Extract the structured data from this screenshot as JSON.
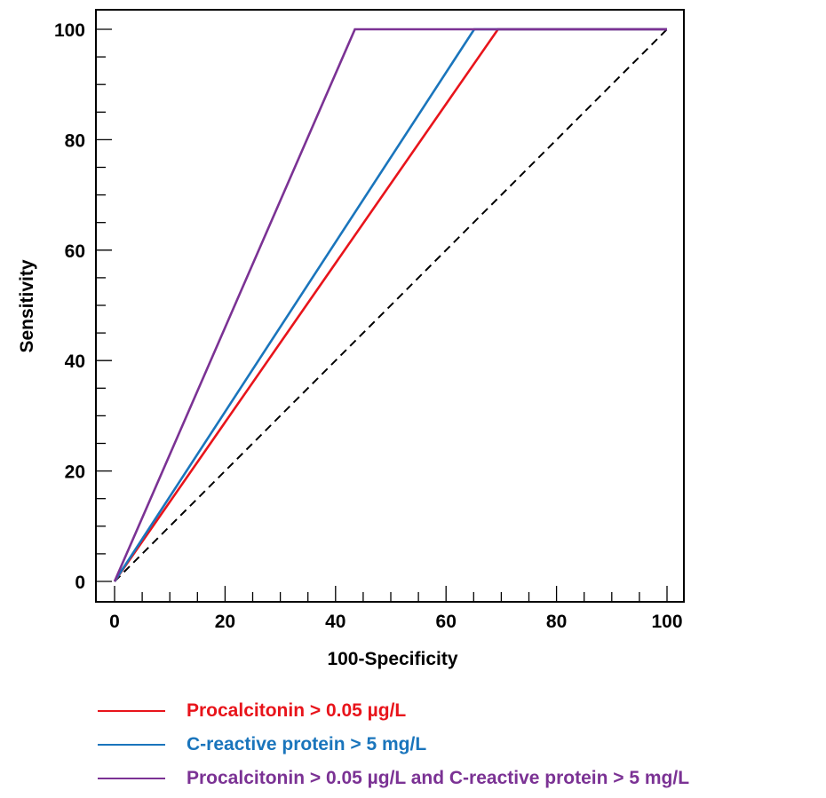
{
  "chart_data": {
    "type": "line",
    "title": "",
    "xlabel": "100-Specificity",
    "ylabel": "Sensitivity",
    "xlim": [
      0,
      100
    ],
    "ylim": [
      0,
      100
    ],
    "x_major_ticks": [
      "0",
      "20",
      "40",
      "60",
      "80",
      "100"
    ],
    "y_major_ticks": [
      "0",
      "20",
      "40",
      "60",
      "80",
      "100"
    ],
    "grid": false,
    "legend_position": "bottom",
    "series": [
      {
        "name": "Procalcitonin > 0.05 µg/L",
        "color": "#e8141b",
        "points": [
          [
            0,
            0
          ],
          [
            69.4,
            100
          ],
          [
            100,
            100
          ]
        ]
      },
      {
        "name": "C-reactive protein > 5 mg/L",
        "color": "#1a75bc",
        "points": [
          [
            0,
            0
          ],
          [
            65.1,
            100
          ],
          [
            100,
            100
          ]
        ]
      },
      {
        "name": "Procalcitonin > 0.05 µg/L and C-reactive protein > 5 mg/L",
        "color": "#7b3294",
        "points": [
          [
            0,
            0
          ],
          [
            43.5,
            100
          ],
          [
            100,
            100
          ]
        ]
      }
    ],
    "reference_line": {
      "style": "dashed",
      "color": "#000000",
      "points": [
        [
          0,
          0
        ],
        [
          100,
          100
        ]
      ]
    }
  }
}
